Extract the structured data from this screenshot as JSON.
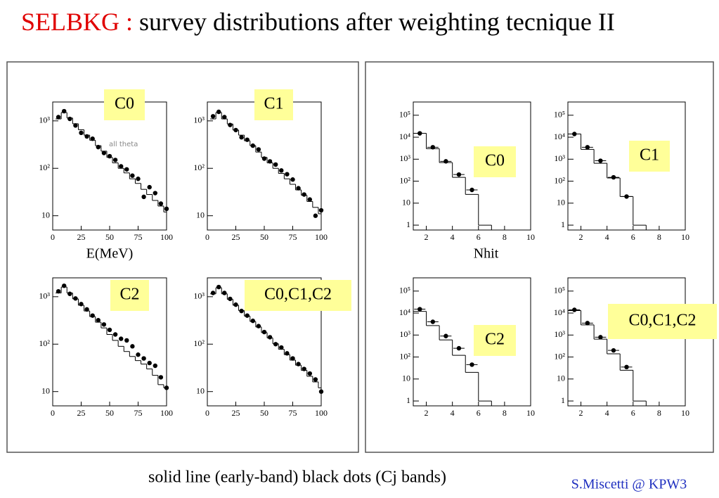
{
  "title_prefix": "SELBKG :",
  "title": "survey distributions after weighting tecnique II",
  "caption": "solid line (early-band)  black dots (Cj bands)",
  "author": "S.Miscetti @ KPW3",
  "chart_data": [
    {
      "type": "line",
      "title": "C0",
      "xlabel": "E(MeV)",
      "annotation": "all theta",
      "x": [
        5,
        10,
        15,
        20,
        25,
        30,
        35,
        40,
        45,
        50,
        55,
        60,
        65,
        70,
        75,
        80,
        85,
        90,
        95,
        100
      ],
      "series": [
        {
          "style": "step",
          "color": "#000000",
          "values": [
            1100,
            1500,
            1150,
            870,
            650,
            500,
            390,
            300,
            230,
            170,
            130,
            100,
            80,
            60,
            48,
            36,
            28,
            21,
            16,
            12
          ]
        },
        {
          "style": "dots",
          "color": "#000000",
          "values": [
            1200,
            1600,
            1100,
            800,
            560,
            470,
            420,
            280,
            210,
            180,
            150,
            110,
            95,
            70,
            60,
            25,
            40,
            30,
            18,
            14
          ]
        }
      ],
      "xlim": [
        0,
        100
      ],
      "xticks": [
        0,
        25,
        50,
        75,
        100
      ],
      "log_y": true,
      "ylim": [
        5,
        2500
      ],
      "yticks": [
        {
          "value": 10,
          "label": "10"
        },
        {
          "value": 100,
          "label": "10²"
        },
        {
          "value": 1000,
          "label": "10³"
        }
      ]
    },
    {
      "type": "line",
      "title": "C1",
      "x": [
        5,
        10,
        15,
        20,
        25,
        30,
        35,
        40,
        45,
        50,
        55,
        60,
        65,
        70,
        75,
        80,
        85,
        90,
        95,
        100
      ],
      "series": [
        {
          "style": "step",
          "color": "#000000",
          "values": [
            1100,
            1500,
            1100,
            860,
            640,
            500,
            380,
            300,
            220,
            170,
            130,
            100,
            78,
            60,
            46,
            35,
            27,
            20,
            15,
            11
          ]
        },
        {
          "style": "dots",
          "color": "#000000",
          "values": [
            1250,
            1550,
            1200,
            820,
            640,
            450,
            400,
            300,
            250,
            160,
            140,
            120,
            90,
            75,
            58,
            38,
            28,
            22,
            10,
            13
          ]
        }
      ],
      "xlim": [
        0,
        100
      ],
      "xticks": [
        0,
        25,
        50,
        75,
        100
      ],
      "log_y": true,
      "ylim": [
        5,
        2500
      ],
      "yticks": [
        {
          "value": 10,
          "label": "10"
        },
        {
          "value": 100,
          "label": "10²"
        },
        {
          "value": 1000,
          "label": "10³"
        }
      ]
    },
    {
      "type": "line",
      "title": "C2",
      "x": [
        5,
        10,
        15,
        20,
        25,
        30,
        35,
        40,
        45,
        50,
        55,
        60,
        65,
        70,
        75,
        80,
        85,
        90,
        95,
        100
      ],
      "series": [
        {
          "style": "step",
          "color": "#000000",
          "values": [
            1200,
            1600,
            1200,
            900,
            660,
            500,
            380,
            290,
            220,
            160,
            120,
            90,
            70,
            55,
            45,
            38,
            30,
            22,
            14,
            12
          ]
        },
        {
          "style": "dots",
          "color": "#000000",
          "values": [
            1300,
            1700,
            1150,
            920,
            700,
            540,
            400,
            320,
            260,
            200,
            160,
            130,
            120,
            90,
            60,
            50,
            40,
            35,
            20,
            12
          ]
        }
      ],
      "xlim": [
        0,
        100
      ],
      "xticks": [
        0,
        25,
        50,
        75,
        100
      ],
      "log_y": true,
      "ylim": [
        5,
        2500
      ],
      "yticks": [
        {
          "value": 10,
          "label": "10"
        },
        {
          "value": 100,
          "label": "10²"
        },
        {
          "value": 1000,
          "label": "10³"
        }
      ]
    },
    {
      "type": "line",
      "title": "C0,C1,C2",
      "x": [
        5,
        10,
        15,
        20,
        25,
        30,
        35,
        40,
        45,
        50,
        55,
        60,
        65,
        70,
        75,
        80,
        85,
        90,
        95,
        100
      ],
      "series": [
        {
          "style": "step",
          "color": "#000000",
          "values": [
            1150,
            1550,
            1150,
            880,
            660,
            510,
            390,
            300,
            230,
            175,
            135,
            102,
            78,
            60,
            46,
            36,
            28,
            21,
            16,
            12
          ]
        },
        {
          "style": "dots",
          "color": "#000000",
          "values": [
            1200,
            1600,
            1200,
            900,
            680,
            500,
            400,
            310,
            240,
            180,
            140,
            100,
            85,
            64,
            50,
            38,
            30,
            24,
            18,
            10
          ]
        }
      ],
      "xlim": [
        0,
        100
      ],
      "xticks": [
        0,
        25,
        50,
        75,
        100
      ],
      "log_y": true,
      "ylim": [
        5,
        2500
      ],
      "yticks": [
        {
          "value": 10,
          "label": "10"
        },
        {
          "value": 100,
          "label": "10²"
        },
        {
          "value": 1000,
          "label": "10³"
        }
      ]
    },
    {
      "type": "histogram",
      "title": "C0",
      "xlabel": "Nhit",
      "bins": [
        1,
        2,
        3,
        4,
        5,
        6,
        7
      ],
      "counts": [
        15000,
        3000,
        700,
        150,
        25,
        1
      ],
      "points": {
        "x": [
          1.5,
          2.5,
          3.5,
          4.5,
          5.5
        ],
        "values": [
          15000,
          3500,
          800,
          200,
          40
        ]
      },
      "xlim": [
        1,
        10
      ],
      "xticks": [
        2,
        4,
        6,
        8,
        10
      ],
      "log_y": true,
      "ylim": [
        0.6,
        400000
      ],
      "yticks": [
        1,
        10,
        {
          "value": 100,
          "label": "10²"
        },
        {
          "value": 1000,
          "label": "10³"
        },
        {
          "value": 10000,
          "label": "10⁴"
        },
        {
          "value": 100000,
          "label": "10⁵"
        }
      ]
    },
    {
      "type": "histogram",
      "title": "C1",
      "bins": [
        1,
        2,
        3,
        4,
        5,
        6,
        7
      ],
      "counts": [
        14000,
        2800,
        650,
        140,
        20,
        1
      ],
      "points": {
        "x": [
          1.5,
          2.5,
          3.5,
          4.5,
          5.5
        ],
        "values": [
          14000,
          3500,
          850,
          150,
          20
        ]
      },
      "xlim": [
        1,
        10
      ],
      "xticks": [
        2,
        4,
        6,
        8,
        10
      ],
      "log_y": true,
      "ylim": [
        0.6,
        400000
      ],
      "yticks": [
        1,
        10,
        {
          "value": 100,
          "label": "10²"
        },
        {
          "value": 1000,
          "label": "10³"
        },
        {
          "value": 10000,
          "label": "10⁴"
        },
        {
          "value": 100000,
          "label": "10⁵"
        }
      ]
    },
    {
      "type": "histogram",
      "title": "C2",
      "bins": [
        1,
        2,
        3,
        4,
        5,
        6,
        7
      ],
      "counts": [
        12000,
        2700,
        600,
        120,
        20,
        1
      ],
      "points": {
        "x": [
          1.5,
          2.5,
          3.5,
          4.5,
          5.5
        ],
        "values": [
          15000,
          4000,
          900,
          250,
          45
        ]
      },
      "xlim": [
        1,
        10
      ],
      "xticks": [
        2,
        4,
        6,
        8,
        10
      ],
      "log_y": true,
      "ylim": [
        0.6,
        400000
      ],
      "yticks": [
        1,
        10,
        {
          "value": 100,
          "label": "10²"
        },
        {
          "value": 1000,
          "label": "10³"
        },
        {
          "value": 10000,
          "label": "10⁴"
        },
        {
          "value": 100000,
          "label": "10⁵"
        }
      ]
    },
    {
      "type": "histogram",
      "title": "C0,C1,C2",
      "bins": [
        1,
        2,
        3,
        4,
        5,
        6,
        7
      ],
      "counts": [
        13000,
        2900,
        650,
        140,
        25,
        1
      ],
      "points": {
        "x": [
          1.5,
          2.5,
          3.5,
          4.5,
          5.5
        ],
        "values": [
          14000,
          3500,
          800,
          200,
          35
        ]
      },
      "xlim": [
        1,
        10
      ],
      "xticks": [
        2,
        4,
        6,
        8,
        10
      ],
      "log_y": true,
      "ylim": [
        0.6,
        400000
      ],
      "yticks": [
        1,
        10,
        {
          "value": 100,
          "label": "10²"
        },
        {
          "value": 1000,
          "label": "10³"
        },
        {
          "value": 10000,
          "label": "10⁴"
        },
        {
          "value": 100000,
          "label": "10⁵"
        }
      ]
    }
  ]
}
